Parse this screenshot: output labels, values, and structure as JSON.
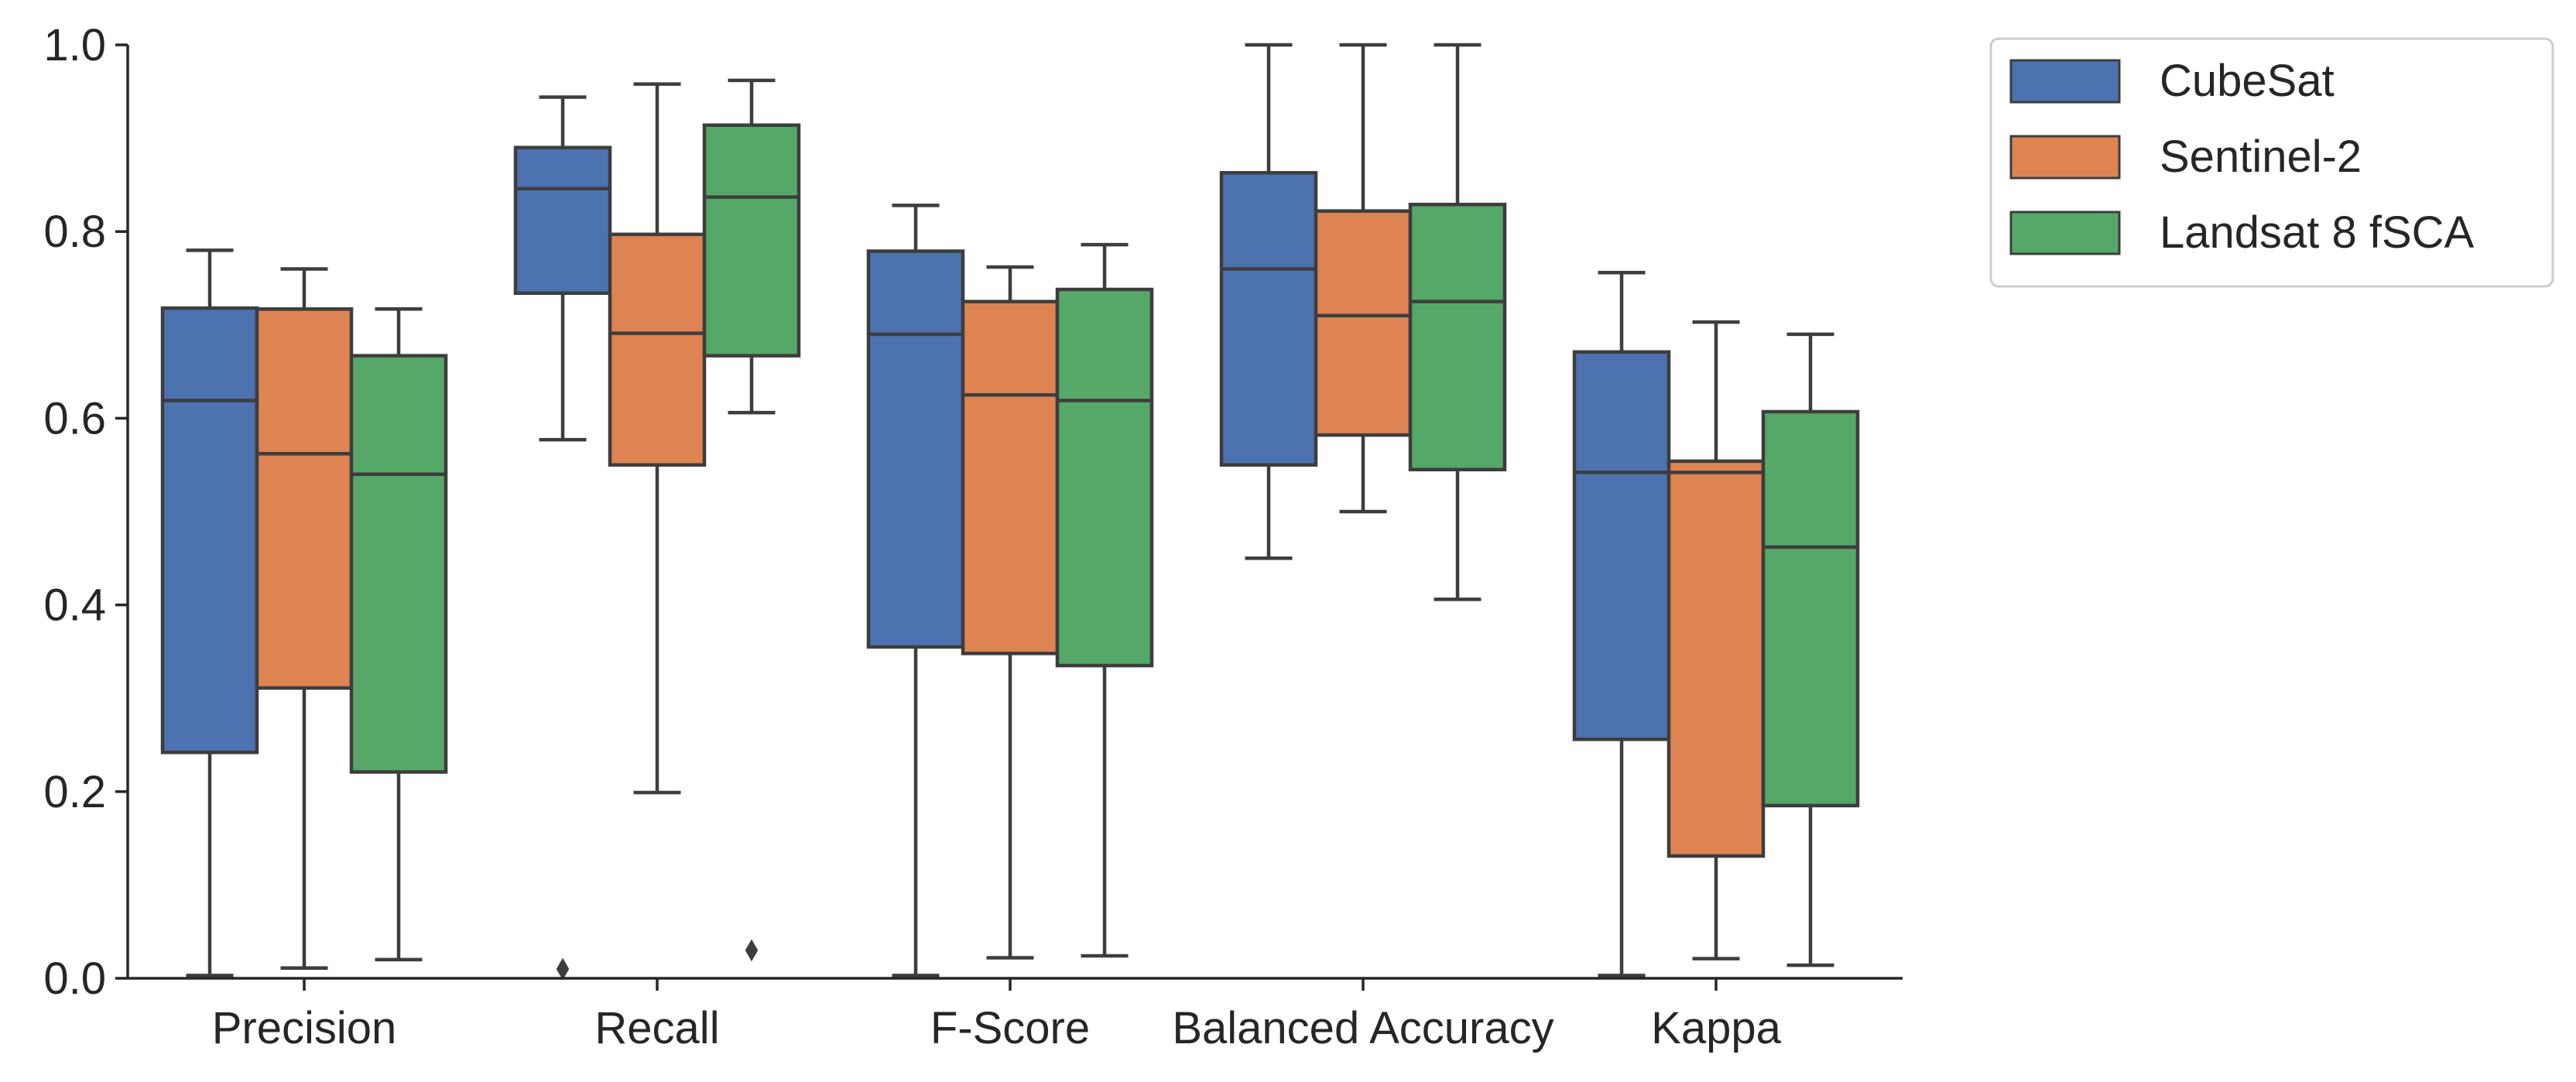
{
  "chart_data": {
    "type": "box",
    "categories": [
      "Precision",
      "Recall",
      "F-Score",
      "Balanced Accuracy",
      "Kappa"
    ],
    "ylim": [
      0.0,
      1.0
    ],
    "yticks": [
      "0.0",
      "0.2",
      "0.4",
      "0.6",
      "0.8",
      "1.0"
    ],
    "legend_position": "upper-right, outside plot",
    "series": [
      {
        "name": "CubeSat",
        "color": "#4c72b0",
        "boxes": [
          {
            "whislo": 0.003,
            "q1": 0.242,
            "med": 0.619,
            "q3": 0.718,
            "whishi": 0.78,
            "fliers": []
          },
          {
            "whislo": 0.577,
            "q1": 0.734,
            "med": 0.846,
            "q3": 0.89,
            "whishi": 0.944,
            "fliers": [
              0.01
            ]
          },
          {
            "whislo": 0.003,
            "q1": 0.355,
            "med": 0.69,
            "q3": 0.779,
            "whishi": 0.828,
            "fliers": []
          },
          {
            "whislo": 0.45,
            "q1": 0.55,
            "med": 0.76,
            "q3": 0.863,
            "whishi": 1.0,
            "fliers": []
          },
          {
            "whislo": 0.003,
            "q1": 0.256,
            "med": 0.542,
            "q3": 0.671,
            "whishi": 0.756,
            "fliers": []
          }
        ]
      },
      {
        "name": "Sentinel-2",
        "color": "#dd8452",
        "boxes": [
          {
            "whislo": 0.011,
            "q1": 0.311,
            "med": 0.562,
            "q3": 0.717,
            "whishi": 0.76,
            "fliers": []
          },
          {
            "whislo": 0.199,
            "q1": 0.55,
            "med": 0.691,
            "q3": 0.797,
            "whishi": 0.958,
            "fliers": []
          },
          {
            "whislo": 0.022,
            "q1": 0.348,
            "med": 0.625,
            "q3": 0.725,
            "whishi": 0.762,
            "fliers": []
          },
          {
            "whislo": 0.5,
            "q1": 0.582,
            "med": 0.71,
            "q3": 0.822,
            "whishi": 1.0,
            "fliers": []
          },
          {
            "whislo": 0.021,
            "q1": 0.131,
            "med": 0.542,
            "q3": 0.554,
            "whishi": 0.703,
            "fliers": []
          }
        ]
      },
      {
        "name": "Landsat 8 fSCA",
        "color": "#55a868",
        "boxes": [
          {
            "whislo": 0.02,
            "q1": 0.221,
            "med": 0.54,
            "q3": 0.667,
            "whishi": 0.717,
            "fliers": []
          },
          {
            "whislo": 0.606,
            "q1": 0.667,
            "med": 0.837,
            "q3": 0.914,
            "whishi": 0.962,
            "fliers": [
              0.03
            ]
          },
          {
            "whislo": 0.024,
            "q1": 0.335,
            "med": 0.619,
            "q3": 0.738,
            "whishi": 0.786,
            "fliers": []
          },
          {
            "whislo": 0.406,
            "q1": 0.545,
            "med": 0.725,
            "q3": 0.829,
            "whishi": 1.0,
            "fliers": []
          },
          {
            "whislo": 0.014,
            "q1": 0.185,
            "med": 0.462,
            "q3": 0.607,
            "whishi": 0.69,
            "fliers": []
          }
        ]
      }
    ]
  }
}
